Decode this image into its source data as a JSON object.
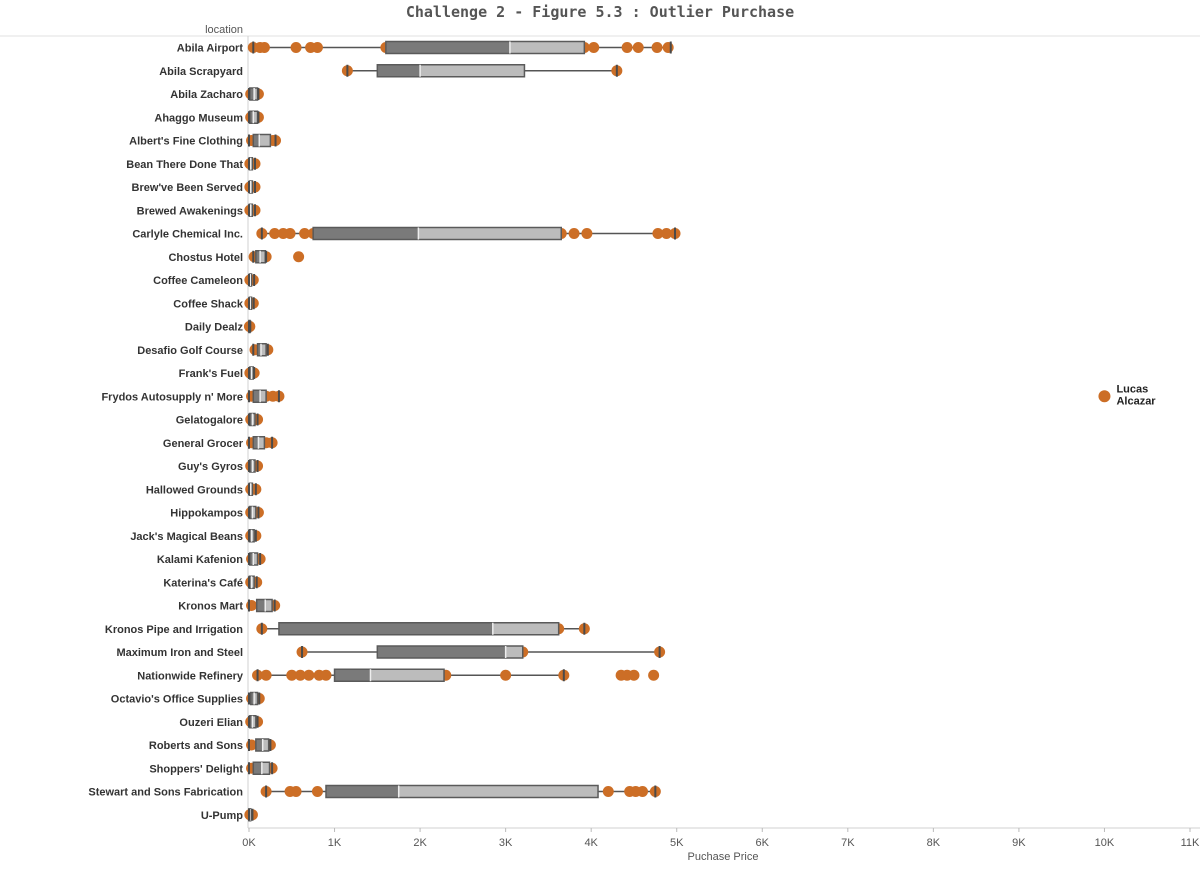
{
  "chart_data": {
    "type": "box",
    "title": "Challenge 2 - Figure 5.3  : Outlier Purchase",
    "row_field_label": "location",
    "xlabel": "Puchase Price",
    "xlim": [
      0,
      11000
    ],
    "x_ticks": [
      0,
      1000,
      2000,
      3000,
      4000,
      5000,
      6000,
      7000,
      8000,
      9000,
      10000,
      11000
    ],
    "x_tick_labels": [
      "0K",
      "1K",
      "2K",
      "3K",
      "4K",
      "5K",
      "6K",
      "7K",
      "8K",
      "9K",
      "10K",
      "11K"
    ],
    "grid": false,
    "colors": {
      "point": "#cc6e26",
      "box_lower": "#7a7a7a",
      "box_upper": "#bcbcbc",
      "whisker": "#555555",
      "axis": "#d0d0d0",
      "title": "#555555"
    },
    "rows": [
      {
        "label": "Abila Airport",
        "min": 50,
        "q1": 1600,
        "median": 3050,
        "q3": 3920,
        "max": 4930,
        "points": [
          50,
          130,
          180,
          550,
          720,
          800,
          1600,
          3920,
          4030,
          4420,
          4550,
          4770,
          4900
        ]
      },
      {
        "label": "Abila Scrapyard",
        "min": 1150,
        "q1": 1500,
        "median": 2000,
        "q3": 3220,
        "max": 4300,
        "points": [
          1150,
          4300
        ]
      },
      {
        "label": "Abila Zacharo",
        "min": 0,
        "q1": 10,
        "median": 60,
        "q3": 100,
        "max": 110,
        "points": [
          20,
          50,
          80,
          110
        ]
      },
      {
        "label": "Ahaggo Museum",
        "min": 0,
        "q1": 10,
        "median": 50,
        "q3": 100,
        "max": 110,
        "points": [
          20,
          50,
          80,
          110
        ]
      },
      {
        "label": "Albert's Fine Clothing",
        "min": 0,
        "q1": 50,
        "median": 120,
        "q3": 250,
        "max": 310,
        "points": [
          30,
          100,
          200,
          280,
          310
        ]
      },
      {
        "label": "Bean There Done That",
        "min": 0,
        "q1": 5,
        "median": 20,
        "q3": 40,
        "max": 70,
        "points": [
          10,
          30,
          50,
          70
        ]
      },
      {
        "label": "Brew've Been Served",
        "min": 0,
        "q1": 5,
        "median": 20,
        "q3": 40,
        "max": 70,
        "points": [
          10,
          30,
          50,
          70
        ]
      },
      {
        "label": "Brewed Awakenings",
        "min": 0,
        "q1": 5,
        "median": 20,
        "q3": 40,
        "max": 70,
        "points": [
          10,
          30,
          50,
          70
        ]
      },
      {
        "label": "Carlyle Chemical Inc.",
        "min": 150,
        "q1": 750,
        "median": 1980,
        "q3": 3650,
        "max": 4980,
        "points": [
          150,
          300,
          400,
          480,
          650,
          750,
          3650,
          3800,
          3950,
          4780,
          4880,
          4980
        ]
      },
      {
        "label": "Chostus Hotel",
        "min": 50,
        "q1": 80,
        "median": 130,
        "q3": 190,
        "max": 200,
        "points": [
          60,
          100,
          150,
          200,
          580
        ]
      },
      {
        "label": "Coffee Cameleon",
        "min": 0,
        "q1": 5,
        "median": 15,
        "q3": 30,
        "max": 60,
        "points": [
          10,
          30,
          50
        ]
      },
      {
        "label": "Coffee Shack",
        "min": 0,
        "q1": 5,
        "median": 15,
        "q3": 30,
        "max": 55,
        "points": [
          10,
          30,
          50
        ]
      },
      {
        "label": "Daily Dealz",
        "min": 0,
        "q1": 0,
        "median": 5,
        "q3": 10,
        "max": 15,
        "points": [
          5,
          10
        ]
      },
      {
        "label": "Desafio Golf Course",
        "min": 50,
        "q1": 100,
        "median": 140,
        "q3": 200,
        "max": 220,
        "points": [
          70,
          130,
          200,
          220
        ]
      },
      {
        "label": "Frank's Fuel",
        "min": 0,
        "q1": 10,
        "median": 30,
        "q3": 50,
        "max": 60,
        "points": [
          10,
          30,
          60
        ]
      },
      {
        "label": "Frydos Autosupply n' More",
        "min": 0,
        "q1": 50,
        "median": 130,
        "q3": 200,
        "max": 350,
        "points": [
          30,
          100,
          200,
          280,
          350
        ]
      },
      {
        "label": "Gelatogalore",
        "min": 0,
        "q1": 10,
        "median": 40,
        "q3": 70,
        "max": 100,
        "points": [
          20,
          50,
          80,
          100
        ]
      },
      {
        "label": "General Grocer",
        "min": 0,
        "q1": 50,
        "median": 110,
        "q3": 180,
        "max": 270,
        "points": [
          30,
          100,
          200,
          270
        ]
      },
      {
        "label": "Guy's Gyros",
        "min": 0,
        "q1": 10,
        "median": 40,
        "q3": 70,
        "max": 100,
        "points": [
          20,
          50,
          80,
          100
        ]
      },
      {
        "label": "Hallowed Grounds",
        "min": 0,
        "q1": 5,
        "median": 20,
        "q3": 40,
        "max": 80,
        "points": [
          20,
          50,
          80
        ]
      },
      {
        "label": "Hippokampos",
        "min": 0,
        "q1": 10,
        "median": 40,
        "q3": 80,
        "max": 110,
        "points": [
          20,
          50,
          80,
          110
        ]
      },
      {
        "label": "Jack's Magical Beans",
        "min": 0,
        "q1": 5,
        "median": 30,
        "q3": 60,
        "max": 80,
        "points": [
          20,
          50,
          80
        ]
      },
      {
        "label": "Kalami Kafenion",
        "min": 0,
        "q1": 10,
        "median": 50,
        "q3": 100,
        "max": 130,
        "points": [
          30,
          70,
          110,
          130
        ]
      },
      {
        "label": "Katerina's Café",
        "min": 0,
        "q1": 5,
        "median": 30,
        "q3": 60,
        "max": 90,
        "points": [
          20,
          50,
          90
        ]
      },
      {
        "label": "Kronos Mart",
        "min": 0,
        "q1": 90,
        "median": 190,
        "q3": 270,
        "max": 300,
        "points": [
          30,
          150,
          250,
          300
        ]
      },
      {
        "label": "Kronos Pipe and Irrigation",
        "min": 150,
        "q1": 350,
        "median": 2850,
        "q3": 3620,
        "max": 3920,
        "points": [
          150,
          3620,
          3920
        ]
      },
      {
        "label": "Maximum Iron and Steel",
        "min": 620,
        "q1": 1500,
        "median": 3000,
        "q3": 3200,
        "max": 4800,
        "points": [
          620,
          3200,
          4800
        ]
      },
      {
        "label": "Nationwide Refinery",
        "min": 100,
        "q1": 1000,
        "median": 1420,
        "q3": 2280,
        "max": 3680,
        "points": [
          100,
          200,
          500,
          600,
          700,
          820,
          900,
          2300,
          3000,
          3680,
          4350,
          4420,
          4500,
          4730
        ]
      },
      {
        "label": "Octavio's Office Supplies",
        "min": 0,
        "q1": 20,
        "median": 60,
        "q3": 100,
        "max": 120,
        "points": [
          30,
          80,
          120
        ]
      },
      {
        "label": "Ouzeri Elian",
        "min": 0,
        "q1": 10,
        "median": 40,
        "q3": 80,
        "max": 100,
        "points": [
          20,
          50,
          100
        ]
      },
      {
        "label": "Roberts and Sons",
        "min": 0,
        "q1": 80,
        "median": 160,
        "q3": 230,
        "max": 250,
        "points": [
          30,
          120,
          200,
          250
        ]
      },
      {
        "label": "Shoppers' Delight",
        "min": 0,
        "q1": 50,
        "median": 150,
        "q3": 240,
        "max": 270,
        "points": [
          30,
          100,
          200,
          270
        ]
      },
      {
        "label": "Stewart and Sons Fabrication",
        "min": 200,
        "q1": 900,
        "median": 1750,
        "q3": 4080,
        "max": 4750,
        "points": [
          200,
          480,
          550,
          800,
          4200,
          4450,
          4520,
          4600,
          4750
        ]
      },
      {
        "label": "U-Pump",
        "min": 0,
        "q1": 0,
        "median": 10,
        "q3": 20,
        "max": 40,
        "points": [
          10,
          30,
          40
        ]
      }
    ],
    "annotations": [
      {
        "row": "Frydos Autosupply n' More",
        "x": 10000,
        "lines": [
          "Lucas",
          "Alcazar"
        ]
      }
    ]
  }
}
